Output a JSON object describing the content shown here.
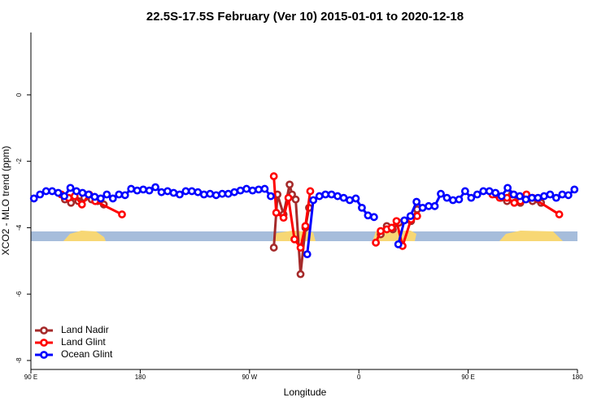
{
  "chart_data": {
    "type": "line",
    "title": "22.5S-17.5S February (Ver 10)   2015-01-01 to 2020-12-18",
    "x_label": "Longitude",
    "y_label": "XCO2 - MLO trend (ppm)",
    "xlim": [
      90,
      540
    ],
    "ylim": [
      -8.27,
      1.88
    ],
    "xticks": [
      {
        "value": 90,
        "label": "90 E"
      },
      {
        "value": 180,
        "label": "180"
      },
      {
        "value": 270,
        "label": "90 W"
      },
      {
        "value": 360,
        "label": "0"
      },
      {
        "value": 450,
        "label": "90 E"
      },
      {
        "value": 540,
        "label": "180"
      }
    ],
    "yticks": [
      0,
      -2,
      -4,
      -6,
      -8
    ],
    "legend": "bottomleft",
    "series": [
      {
        "name": "Land Nadir",
        "color": "#a52a2a",
        "x": [
          118,
          123,
          129,
          134,
          140,
          145,
          150,
          220,
          290,
          293,
          298,
          303,
          305,
          308,
          312,
          316,
          319,
          350,
          378,
          383,
          388,
          393,
          403,
          408,
          440,
          473,
          477,
          482,
          486,
          493,
          498,
          503,
          510
        ],
        "values": [
          -3.15,
          -3.25,
          -3.2,
          -3.1,
          -3.15,
          -3.2,
          -3.3,
          null,
          -4.6,
          -3.0,
          -3.6,
          -2.7,
          -3.0,
          -3.15,
          -5.4,
          -4.0,
          -3.4,
          null,
          -4.2,
          -3.95,
          -4.05,
          -3.85,
          -3.8,
          -3.45,
          null,
          -3.0,
          -3.1,
          -3.2,
          -3.0,
          -3.25,
          -3.1,
          -3.2,
          -3.25
        ]
      },
      {
        "name": "Land Glint",
        "color": "#ff0000",
        "x": [
          115,
          121,
          126,
          132,
          138,
          143,
          165,
          230,
          290,
          292,
          298,
          302,
          307,
          312,
          316,
          320,
          350,
          374,
          378,
          383,
          387,
          391,
          396,
          403,
          408,
          440,
          470,
          476,
          482,
          488,
          493,
          498,
          503,
          525
        ],
        "values": [
          -3.0,
          -3.1,
          -3.05,
          -3.3,
          -3.0,
          -3.2,
          -3.6,
          null,
          -2.45,
          -3.55,
          -3.7,
          -3.1,
          -4.35,
          -4.6,
          -3.95,
          -2.9,
          null,
          -4.45,
          -4.1,
          -4.05,
          -4.0,
          -3.8,
          -4.55,
          -3.75,
          -3.65,
          null,
          -3.0,
          -3.1,
          -3.1,
          -3.25,
          -3.2,
          -3.0,
          -3.1,
          -3.6
        ]
      },
      {
        "name": "Ocean Glint",
        "color": "#0000ff",
        "x": [
          92.5,
          97.5,
          102.5,
          107.5,
          112.5,
          117.5,
          122.5,
          127.5,
          132.5,
          137.5,
          142.5,
          147.5,
          152.5,
          157.5,
          162.5,
          167.5,
          172.5,
          177.5,
          182.5,
          187.5,
          192.5,
          197.5,
          202.5,
          207.5,
          212.5,
          217.5,
          222.5,
          227.5,
          232.5,
          237.5,
          242.5,
          247.5,
          252.5,
          257.5,
          262.5,
          267.5,
          272.5,
          277.5,
          282.5,
          287.5,
          292.5,
          297.5,
          302.5,
          307.5,
          312.5,
          317.5,
          322.5,
          327.5,
          332.5,
          337.5,
          342.5,
          347.5,
          352.5,
          357.5,
          362.5,
          367.5,
          372.5,
          377.5,
          382.5,
          387.5,
          392.5,
          397.5,
          402.5,
          407.5,
          412.5,
          417.5,
          422.5,
          427.5,
          432.5,
          437.5,
          442.5,
          447.5,
          452.5,
          457.5,
          462.5,
          467.5,
          472.5,
          477.5,
          482.5,
          487.5,
          492.5,
          497.5,
          502.5,
          507.5,
          512.5,
          517.5,
          522.5,
          527.5,
          532.5,
          537.5
        ],
        "values": [
          -3.12,
          -3.0,
          -2.9,
          -2.9,
          -2.95,
          -3.05,
          -2.8,
          -2.9,
          -2.95,
          -3.0,
          -3.07,
          -3.12,
          -3.0,
          -3.12,
          -3.0,
          -3.02,
          -2.83,
          -2.88,
          -2.85,
          -2.88,
          -2.78,
          -2.93,
          -2.9,
          -2.95,
          -3.0,
          -2.9,
          -2.9,
          -2.93,
          -3.0,
          -2.98,
          -3.02,
          -2.98,
          -2.98,
          -2.93,
          -2.88,
          -2.83,
          -2.88,
          -2.85,
          -2.83,
          -3.05,
          null,
          null,
          null,
          null,
          null,
          -4.8,
          -3.17,
          -3.05,
          -3.0,
          -3.0,
          -3.05,
          -3.1,
          -3.17,
          -3.12,
          -3.4,
          -3.63,
          -3.68,
          null,
          null,
          null,
          -4.5,
          -3.78,
          -3.65,
          -3.22,
          -3.4,
          -3.35,
          -3.35,
          -2.98,
          -3.1,
          -3.17,
          -3.15,
          -2.9,
          -3.1,
          -3.0,
          -2.9,
          -2.9,
          -2.95,
          -3.05,
          -2.8,
          -3.0,
          -3.05,
          -3.15,
          -3.1,
          -3.1,
          -3.05,
          -3.0,
          -3.1,
          -3.0,
          -3.02,
          -2.85
        ]
      }
    ]
  }
}
